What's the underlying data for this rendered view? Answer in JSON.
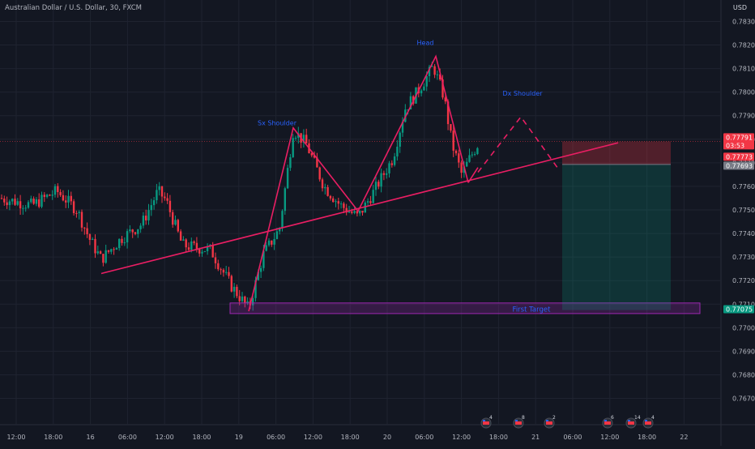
{
  "header": {
    "symbol_title": "Australian Dollar / U.S. Dollar, 30, FXCM",
    "currency": "USD"
  },
  "chart_data": {
    "type": "candlestick",
    "price_axis": {
      "ticks": [
        "0.78300",
        "0.78200",
        "0.78100",
        "0.78000",
        "0.77900",
        "0.77800",
        "0.77700",
        "0.77600",
        "0.77500",
        "0.77400",
        "0.77300",
        "0.77200",
        "0.77100",
        "0.77000",
        "0.76900",
        "0.76800",
        "0.76700"
      ],
      "range": [
        0.7664,
        0.7836
      ]
    },
    "time_axis": {
      "ticks": [
        "12:00",
        "18:00",
        "16",
        "06:00",
        "12:00",
        "18:00",
        "19",
        "06:00",
        "12:00",
        "18:00",
        "20",
        "06:00",
        "12:00",
        "18:00",
        "21",
        "06:00",
        "12:00",
        "18:00",
        "22"
      ]
    },
    "price_labels": [
      {
        "value": "0.77791",
        "sublabel": "03:53",
        "color": "#f23645"
      },
      {
        "value": "0.77773",
        "color": "#f23645"
      },
      {
        "value": "0.77693",
        "color": "#787b86"
      },
      {
        "value": "0.77075",
        "color": "#089981"
      }
    ],
    "annotations": [
      {
        "text": "Sx Shoulder",
        "color": "#2962ff"
      },
      {
        "text": "Head",
        "color": "#2962ff"
      },
      {
        "text": "Dx Shoulder",
        "color": "#2962ff"
      },
      {
        "text": "First Target",
        "color": "#2962ff"
      }
    ],
    "events": [
      "4",
      "8",
      "2",
      "6",
      "14",
      "4"
    ],
    "colors": {
      "up": "#089981",
      "down": "#f23645",
      "pattern": "#e91e63",
      "target_zone": "#9c27b0",
      "background": "#131722"
    },
    "pattern": "head and shoulders",
    "grid": true
  }
}
